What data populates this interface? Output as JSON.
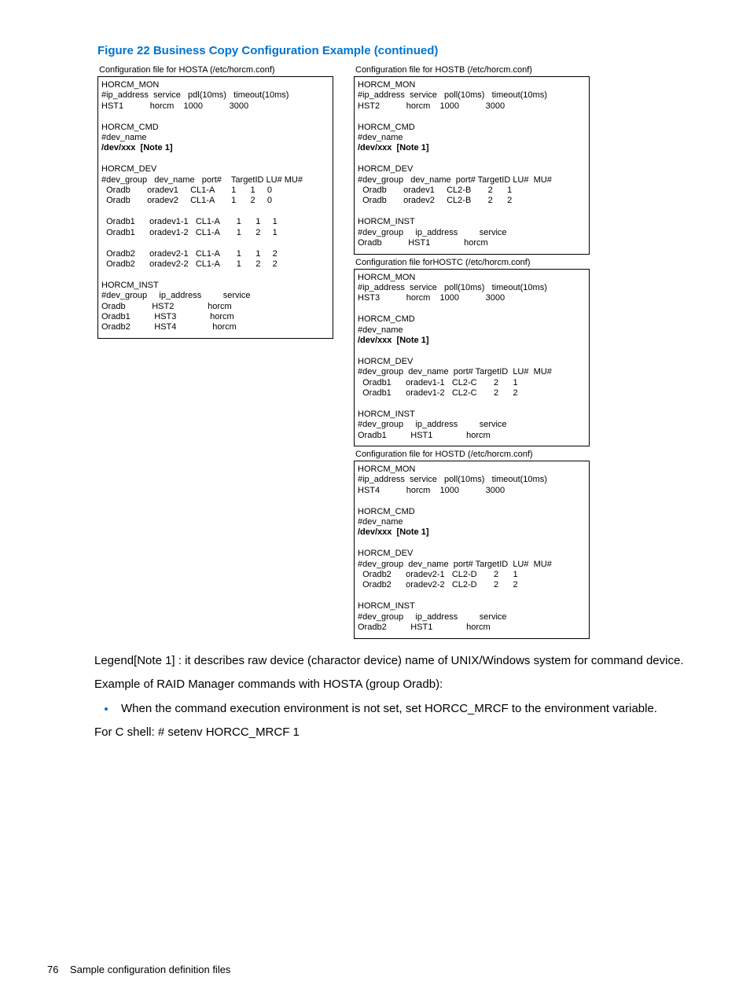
{
  "figure": {
    "title": "Figure 22 Business Copy Configuration Example (continued)",
    "title_color": "#0073cf"
  },
  "hosta": {
    "label": "Configuration file for HOSTA (/etc/horcm.conf)",
    "content": "HORCM_MON\n#ip_address  service   pdl(10ms)   timeout(10ms)\nHST1           horcm    1000           3000\n\nHORCM_CMD\n#dev_name\n/dev/xxx  [Note 1]\n\nHORCM_DEV\n#dev_group   dev_name   port#    TargetID LU# MU#\n  Oradb       oradev1     CL1-A       1      1     0\n  Oradb       oradev2     CL1-A       1      2     0\n\n  Oradb1      oradev1-1   CL1-A       1      1     1\n  Oradb1      oradev1-2   CL1-A       1      2     1\n\n  Oradb2      oradev2-1   CL1-A       1      1     2\n  Oradb2      oradev2-2   CL1-A       1      2     2\n\nHORCM_INST\n#dev_group     ip_address         service\nOradb           HST2              horcm\nOradb1          HST3              horcm\nOradb2          HST4               horcm"
  },
  "hostb": {
    "label": "Configuration file for HOSTB (/etc/horcm.conf)",
    "content": "HORCM_MON\n#ip_address  service   poll(10ms)   timeout(10ms)\nHST2           horcm    1000           3000\n\nHORCM_CMD\n#dev_name\n/dev/xxx  [Note 1]\n\nHORCM_DEV\n#dev_group   dev_name  port# TargetID LU#  MU#\n  Oradb       oradev1     CL2-B       2      1\n  Oradb       oradev2     CL2-B       2      2\n\nHORCM_INST\n#dev_group     ip_address         service\nOradb           HST1              horcm"
  },
  "hostc": {
    "label": "Configuration file forHOSTC (/etc/horcm.conf)",
    "content": "HORCM_MON\n#ip_address  service   poll(10ms)   timeout(10ms)\nHST3           horcm    1000           3000\n\nHORCM_CMD\n#dev_name\n/dev/xxx  [Note 1]\n\nHORCM_DEV\n#dev_group  dev_name  port# TargetID  LU#  MU#\n  Oradb1      oradev1-1   CL2-C       2      1\n  Oradb1      oradev1-2   CL2-C       2      2\n\nHORCM_INST\n#dev_group     ip_address         service\nOradb1          HST1              horcm"
  },
  "hostd": {
    "label": "Configuration file for HOSTD (/etc/horcm.conf)",
    "content": "HORCM_MON\n#ip_address  service   poll(10ms)   timeout(10ms)\nHST4           horcm    1000           3000\n\nHORCM_CMD\n#dev_name\n/dev/xxx  [Note 1]\n\nHORCM_DEV\n#dev_group  dev_name  port# TargetID  LU#  MU#\n  Oradb2      oradev2-1   CL2-D       2      1\n  Oradb2      oradev2-2   CL2-D       2      2\n\nHORCM_INST\n#dev_group     ip_address         service\nOradb2          HST1              horcm"
  },
  "body": {
    "legend": "Legend[Note 1] : it describes raw device (charactor device) name of UNIX/Windows system for command device.",
    "example_intro": "Example of RAID Manager commands with HOSTA (group Oradb):",
    "bullet1": "When the command execution environment is not set, set HORCC_MRCF to the environment variable.",
    "cshell": "For C shell: # setenv HORCC_MRCF 1"
  },
  "footer": {
    "page_num": "76",
    "section": "Sample configuration definition files"
  },
  "colors": {
    "accent": "#0073cf",
    "text": "#000000",
    "bg": "#ffffff"
  }
}
